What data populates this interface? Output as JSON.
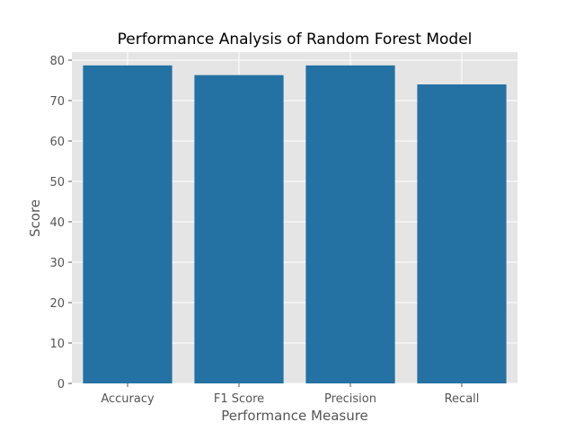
{
  "chart_data": {
    "type": "bar",
    "title": "Performance Analysis of Random Forest Model",
    "xlabel": "Performance Measure",
    "ylabel": "Score",
    "categories": [
      "Accuracy",
      "F1 Score",
      "Precision",
      "Recall"
    ],
    "values": [
      78.7,
      76.3,
      78.7,
      74.0
    ],
    "ylim": [
      0,
      82
    ],
    "yticks": [
      0,
      10,
      20,
      30,
      40,
      50,
      60,
      70,
      80
    ],
    "grid": true,
    "colors": {
      "bar": "#2471a3",
      "plot_background": "#e5e5e5",
      "grid": "#ffffff",
      "text": "#555555"
    }
  }
}
